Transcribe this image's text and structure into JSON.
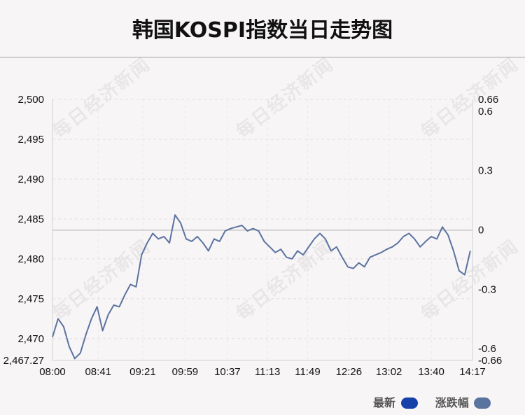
{
  "header": {
    "title": "韩国KOSPI指数当日走势图"
  },
  "legend": {
    "items": [
      {
        "label": "最新",
        "color": "#1541a8"
      },
      {
        "label": "涨跌幅",
        "color": "#5b739f"
      }
    ]
  },
  "watermark": {
    "text": "每日经济新闻"
  },
  "chart_data": {
    "type": "line",
    "title": "韩国KOSPI指数当日走势图",
    "xlabel": "",
    "ylabel": "",
    "x_ticks": [
      "08:00",
      "08:41",
      "09:21",
      "09:59",
      "10:37",
      "11:13",
      "11:49",
      "12:26",
      "13:02",
      "13:40",
      "14:17"
    ],
    "y_left_ticks": [
      "2,467.27",
      "2,470",
      "2,475",
      "2,480",
      "2,485",
      "2,490",
      "2,495",
      "2,500"
    ],
    "y_left_range": [
      2467.27,
      2500
    ],
    "y_right_ticks": [
      "-0.66",
      "-0.6",
      "-0.3",
      "0",
      "0.3",
      "0.6",
      "0.66"
    ],
    "y_right_range": [
      -0.66,
      0.66
    ],
    "reference_level": 2483.6,
    "line_color": "#5b739f",
    "series": [
      {
        "name": "最新",
        "x": [
          "08:00",
          "08:05",
          "08:10",
          "08:15",
          "08:20",
          "08:25",
          "08:30",
          "08:35",
          "08:40",
          "08:45",
          "08:50",
          "08:55",
          "09:00",
          "09:05",
          "09:10",
          "09:15",
          "09:20",
          "09:25",
          "09:30",
          "09:35",
          "09:40",
          "09:45",
          "09:50",
          "09:55",
          "10:00",
          "10:05",
          "10:10",
          "10:15",
          "10:20",
          "10:25",
          "10:30",
          "10:35",
          "10:40",
          "10:45",
          "10:50",
          "10:55",
          "11:00",
          "11:05",
          "11:10",
          "11:15",
          "11:20",
          "11:25",
          "11:30",
          "11:35",
          "11:40",
          "11:45",
          "11:50",
          "11:55",
          "12:00",
          "12:05",
          "12:10",
          "12:15",
          "12:20",
          "12:25",
          "12:30",
          "12:35",
          "12:40",
          "12:45",
          "12:50",
          "12:55",
          "13:00",
          "13:05",
          "13:10",
          "13:15",
          "13:20",
          "13:25",
          "13:30",
          "13:35",
          "13:40",
          "13:45",
          "13:50",
          "13:55",
          "14:00",
          "14:05",
          "14:10",
          "14:15"
        ],
        "values": [
          2470.2,
          2472.5,
          2471.5,
          2469.0,
          2467.5,
          2468.2,
          2470.5,
          2472.5,
          2474.0,
          2471.0,
          2473.0,
          2474.2,
          2474.0,
          2475.5,
          2476.8,
          2476.5,
          2480.5,
          2482.0,
          2483.2,
          2482.5,
          2482.8,
          2482.0,
          2485.5,
          2484.5,
          2482.5,
          2482.2,
          2482.8,
          2482.0,
          2481.0,
          2482.5,
          2482.2,
          2483.5,
          2483.8,
          2484.0,
          2484.2,
          2483.5,
          2483.8,
          2483.5,
          2482.2,
          2481.5,
          2480.8,
          2481.2,
          2480.2,
          2480.0,
          2481.0,
          2480.5,
          2481.5,
          2482.5,
          2483.2,
          2482.5,
          2481.0,
          2481.5,
          2480.2,
          2479.0,
          2478.8,
          2479.5,
          2479.0,
          2480.2,
          2480.5,
          2480.8,
          2481.2,
          2481.5,
          2482.0,
          2482.8,
          2483.2,
          2482.5,
          2481.5,
          2482.2,
          2482.8,
          2482.5,
          2484.0,
          2483.0,
          2481.0,
          2478.5,
          2478.0,
          2481.0
        ]
      }
    ]
  }
}
